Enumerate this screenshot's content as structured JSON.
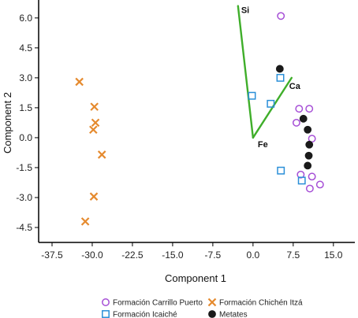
{
  "chart_data": {
    "type": "scatter",
    "title": "",
    "xlabel": "Component 1",
    "ylabel": "Component 2",
    "xlim": [
      -40,
      19
    ],
    "ylim": [
      -5.25,
      6.9
    ],
    "xticks": [
      -37.5,
      -30,
      -22.5,
      -15,
      -7.5,
      0,
      7.5,
      15
    ],
    "xtick_labels": [
      "-37.5",
      "-30.0",
      "-22.5",
      "-15.0",
      "-7.5",
      "0.0",
      "7.5",
      "15.0"
    ],
    "yticks": [
      6,
      4.5,
      3,
      1.5,
      0,
      -1.5,
      -3,
      -4.5
    ],
    "ytick_labels": [
      "6.0",
      "4.5",
      "3.0",
      "1.5",
      "0.0",
      "-1.5",
      "-3.0",
      "-4.5"
    ],
    "grid": false,
    "legend_position": "bottom",
    "series": [
      {
        "name": "Formación Carrillo Puerto",
        "marker": "circle-open",
        "color": "#a64fd6",
        "points": [
          [
            5.2,
            6.1
          ],
          [
            8.6,
            1.45
          ],
          [
            10.5,
            1.45
          ],
          [
            8.1,
            0.75
          ],
          [
            11.0,
            -0.05
          ],
          [
            8.9,
            -1.85
          ],
          [
            11.0,
            -1.95
          ],
          [
            12.5,
            -2.35
          ],
          [
            10.6,
            -2.55
          ]
        ]
      },
      {
        "name": "Formación Icaiché",
        "marker": "square-open",
        "color": "#2a8fd8",
        "points": [
          [
            5.1,
            3.0
          ],
          [
            -0.2,
            2.1
          ],
          [
            3.3,
            1.7
          ],
          [
            5.2,
            -1.65
          ],
          [
            9.1,
            -2.15
          ]
        ]
      },
      {
        "name": "Formación Chichén Itzá",
        "marker": "x",
        "color": "#e58a2e",
        "points": [
          [
            -32.4,
            2.8
          ],
          [
            -29.6,
            1.55
          ],
          [
            -29.4,
            0.75
          ],
          [
            -29.8,
            0.4
          ],
          [
            -28.2,
            -0.85
          ],
          [
            -29.7,
            -2.95
          ],
          [
            -31.3,
            -4.2
          ]
        ]
      },
      {
        "name": "Metates",
        "marker": "circle-filled",
        "color": "#1a1a1a",
        "points": [
          [
            5.0,
            3.45
          ],
          [
            9.4,
            0.95
          ],
          [
            10.2,
            0.4
          ],
          [
            10.5,
            -0.35
          ],
          [
            10.4,
            -0.9
          ],
          [
            10.2,
            -1.4
          ]
        ]
      }
    ],
    "vectors": {
      "color": "#3fae2a",
      "origin": [
        0,
        0
      ],
      "items": [
        {
          "label": "Si",
          "end": [
            -2.8,
            6.6
          ]
        },
        {
          "label": "Ca",
          "end": [
            7.2,
            3.0
          ]
        },
        {
          "label": "Fe",
          "end": [
            0,
            0
          ]
        }
      ]
    }
  }
}
